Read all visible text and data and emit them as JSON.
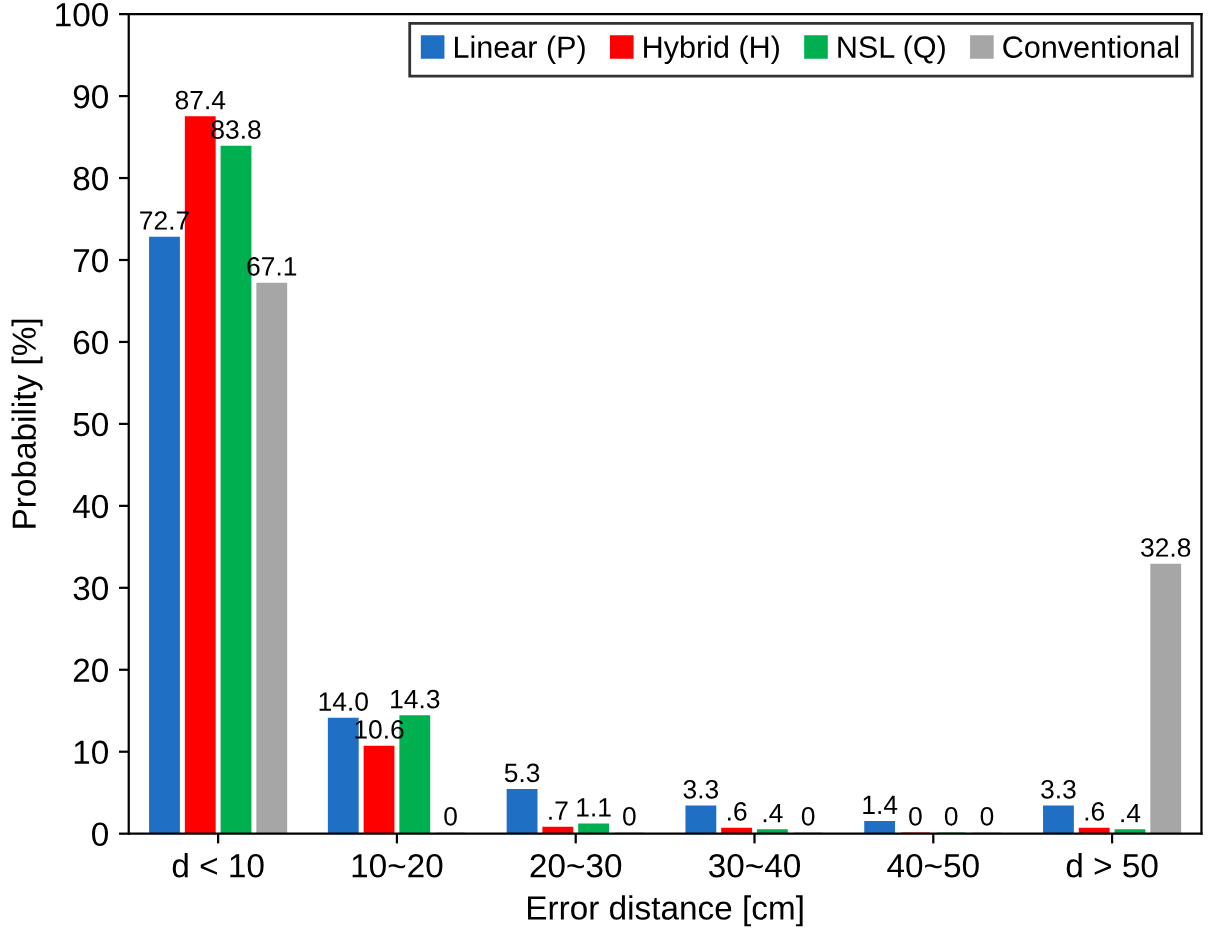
{
  "chart_data": {
    "type": "bar",
    "xlabel": "Error distance [cm]",
    "ylabel": "Probability [%]",
    "categories": [
      "d < 10",
      "10~20",
      "20~30",
      "30~40",
      "40~50",
      "d > 50"
    ],
    "series": [
      {
        "name": "Linear (P)",
        "color": "#1f6fc5",
        "values": [
          72.7,
          14.0,
          5.3,
          3.3,
          1.4,
          3.3
        ],
        "value_labels": [
          "72.7",
          "14.0",
          "5.3",
          "3.3",
          "1.4",
          "3.3"
        ]
      },
      {
        "name": "Hybrid (H)",
        "color": "#ff0000",
        "values": [
          87.4,
          10.6,
          0.7,
          0.6,
          0,
          0.6
        ],
        "value_labels": [
          "87.4",
          "10.6",
          ".7",
          ".6",
          "0",
          ".6"
        ]
      },
      {
        "name": "NSL (Q)",
        "color": "#00b050",
        "values": [
          83.8,
          14.3,
          1.1,
          0.4,
          0,
          0.4
        ],
        "value_labels": [
          "83.8",
          "14.3",
          "1.1",
          ".4",
          "0",
          ".4"
        ]
      },
      {
        "name": "Conventional",
        "color": "#a6a6a6",
        "values": [
          67.1,
          0,
          0,
          0,
          0,
          32.8
        ],
        "value_labels": [
          "67.1",
          "0",
          "0",
          "0",
          "0",
          "32.8"
        ]
      }
    ],
    "ylim": [
      0,
      100
    ],
    "yticks": [
      0,
      10,
      20,
      30,
      40,
      50,
      60,
      70,
      80,
      90,
      100
    ],
    "grid": false,
    "legend": "top right"
  }
}
